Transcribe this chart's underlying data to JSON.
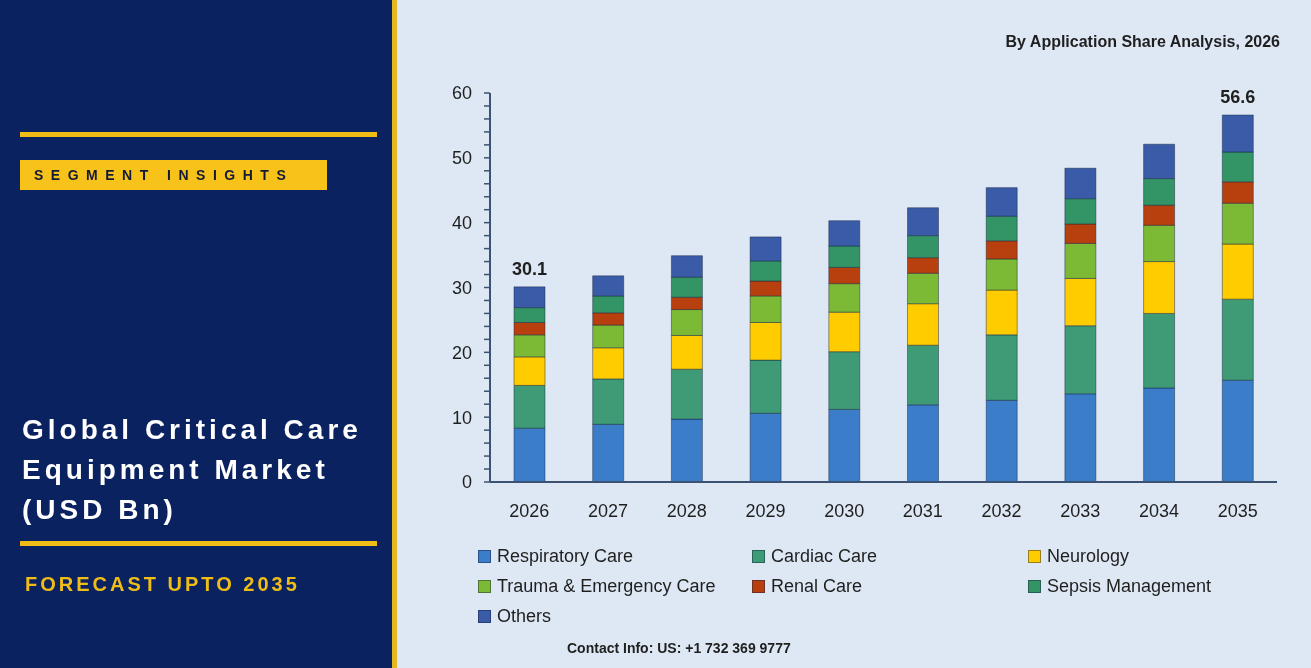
{
  "chart_data": {
    "type": "bar",
    "title": "Global Critical Care Equipment Market (USD Bn)",
    "subtitle": "By Application Share Analysis, 2026",
    "annotations": [
      "SEGMENT INSIGHTS",
      "FORECAST UPTO 2035",
      "Contact Info: US: +1 732 369 9777"
    ],
    "categories": [
      "2026",
      "2027",
      "2028",
      "2029",
      "2030",
      "2031",
      "2032",
      "2033",
      "2034",
      "2035"
    ],
    "series": [
      {
        "name": "Respiratory Care",
        "color": "#3b7dc8",
        "values": [
          8.3,
          8.9,
          9.7,
          10.6,
          11.2,
          11.9,
          12.6,
          13.6,
          14.5,
          15.7
        ]
      },
      {
        "name": "Cardiac Care",
        "color": "#3e9b76",
        "values": [
          6.6,
          7.0,
          7.7,
          8.2,
          8.9,
          9.2,
          10.1,
          10.5,
          11.5,
          12.5
        ]
      },
      {
        "name": "Neurology",
        "color": "#ffcc00",
        "values": [
          4.4,
          4.8,
          5.2,
          5.8,
          6.1,
          6.4,
          6.9,
          7.3,
          8.0,
          8.5
        ]
      },
      {
        "name": "Trauma & Emergency Care",
        "color": "#7cb934",
        "values": [
          3.4,
          3.5,
          4.0,
          4.1,
          4.4,
          4.7,
          4.8,
          5.4,
          5.6,
          6.3
        ]
      },
      {
        "name": "Renal Care",
        "color": "#b8400f",
        "values": [
          1.9,
          1.9,
          1.9,
          2.3,
          2.5,
          2.4,
          2.8,
          3.0,
          3.1,
          3.3
        ]
      },
      {
        "name": "Sepsis Management",
        "color": "#339466",
        "values": [
          2.3,
          2.6,
          3.1,
          3.1,
          3.3,
          3.4,
          3.8,
          3.9,
          4.1,
          4.6
        ]
      },
      {
        "name": "Others",
        "color": "#3a5ca8",
        "values": [
          3.2,
          3.1,
          3.3,
          3.7,
          3.9,
          4.3,
          4.4,
          4.7,
          5.3,
          5.7
        ]
      }
    ],
    "stacked": true,
    "totals": [
      "30.1",
      null,
      null,
      null,
      null,
      null,
      null,
      null,
      null,
      "56.6"
    ],
    "ylim": [
      0,
      60
    ],
    "yticks": [
      0,
      {
        "value": 2,
        "label": null
      },
      {
        "value": 4,
        "label": null
      },
      {
        "value": 6,
        "label": null
      },
      {
        "value": 8,
        "label": null
      },
      10,
      {
        "value": 12,
        "label": null
      },
      {
        "value": 14,
        "label": null
      },
      {
        "value": 16,
        "label": null
      },
      {
        "value": 18,
        "label": null
      },
      20,
      {
        "value": 22,
        "label": null
      },
      {
        "value": 24,
        "label": null
      },
      {
        "value": 26,
        "label": null
      },
      {
        "value": 28,
        "label": null
      },
      30,
      {
        "value": 32,
        "label": null
      },
      {
        "value": 34,
        "label": null
      },
      {
        "value": 36,
        "label": null
      },
      {
        "value": 38,
        "label": null
      },
      40,
      {
        "value": 42,
        "label": null
      },
      {
        "value": 44,
        "label": null
      },
      {
        "value": 46,
        "label": null
      },
      {
        "value": 48,
        "label": null
      },
      50,
      {
        "value": 52,
        "label": null
      },
      {
        "value": 54,
        "label": null
      },
      {
        "value": 56,
        "label": null
      },
      {
        "value": 58,
        "label": null
      },
      60
    ],
    "legend": "bottom"
  }
}
